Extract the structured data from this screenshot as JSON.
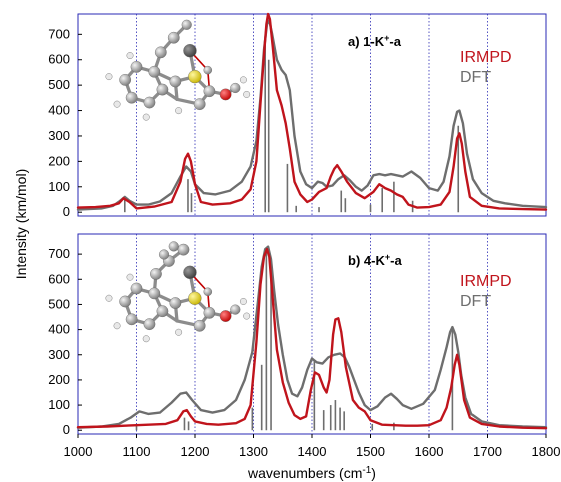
{
  "chart_data": {
    "type": "line",
    "xlabel": "wavenumbers (cm",
    "xlabel_sup": "-1",
    "xlabel_end": ")",
    "ylabel": "Intensity (km/mol)",
    "xlim": [
      1000,
      1800
    ],
    "x_ticks": [
      1000,
      1100,
      1200,
      1300,
      1400,
      1500,
      1600,
      1700,
      1800
    ],
    "y_ticks": [
      0,
      100,
      200,
      300,
      400,
      500,
      600,
      700
    ],
    "ylim": [
      -15,
      780
    ],
    "colors": {
      "IRMPD": "#c0141c",
      "DFT": "#6e6e6e",
      "frame": "#2a2ab4",
      "gridline": "#2a2ab4"
    },
    "panels": [
      {
        "label": "a) 1-K",
        "label_sup": "+",
        "label_end": "-a",
        "legend": [
          "IRMPD",
          "DFT"
        ],
        "vlines": [
          1100,
          1200,
          1300,
          1400,
          1500,
          1600,
          1700
        ],
        "series": [
          {
            "name": "IRMPD",
            "x": [
              1000,
              1030,
              1055,
              1070,
              1078,
              1088,
              1100,
              1130,
              1160,
              1175,
              1183,
              1188,
              1193,
              1200,
              1210,
              1230,
              1260,
              1280,
              1295,
              1305,
              1312,
              1318,
              1322,
              1325,
              1328,
              1333,
              1340,
              1348,
              1355,
              1362,
              1370,
              1380,
              1392,
              1400,
              1412,
              1425,
              1432,
              1438,
              1443,
              1450,
              1460,
              1475,
              1490,
              1505,
              1515,
              1525,
              1535,
              1545,
              1555,
              1565,
              1580,
              1600,
              1620,
              1635,
              1642,
              1648,
              1652,
              1656,
              1662,
              1670,
              1690,
              1720,
              1760,
              1800
            ],
            "y": [
              18,
              20,
              25,
              35,
              55,
              40,
              15,
              22,
              40,
              120,
              210,
              230,
              200,
              110,
              40,
              30,
              35,
              50,
              90,
              200,
              430,
              620,
              740,
              780,
              760,
              650,
              480,
              420,
              350,
              250,
              120,
              70,
              40,
              50,
              80,
              95,
              140,
              170,
              185,
              160,
              120,
              75,
              55,
              80,
              110,
              95,
              85,
              70,
              60,
              30,
              18,
              20,
              30,
              80,
              180,
              290,
              310,
              270,
              160,
              60,
              25,
              15,
              12,
              10
            ]
          },
          {
            "name": "DFT",
            "x": [
              1000,
              1040,
              1060,
              1072,
              1080,
              1088,
              1100,
              1120,
              1140,
              1160,
              1175,
              1185,
              1193,
              1200,
              1215,
              1235,
              1260,
              1280,
              1295,
              1305,
              1312,
              1318,
              1323,
              1327,
              1332,
              1340,
              1348,
              1355,
              1362,
              1370,
              1380,
              1390,
              1400,
              1410,
              1418,
              1425,
              1435,
              1445,
              1455,
              1465,
              1475,
              1485,
              1495,
              1505,
              1515,
              1525,
              1535,
              1545,
              1555,
              1570,
              1585,
              1600,
              1615,
              1625,
              1635,
              1642,
              1648,
              1652,
              1658,
              1665,
              1675,
              1690,
              1710,
              1730,
              1760,
              1800
            ],
            "y": [
              10,
              15,
              25,
              45,
              60,
              45,
              30,
              30,
              42,
              75,
              140,
              180,
              160,
              110,
              75,
              70,
              85,
              120,
              180,
              280,
              450,
              640,
              740,
              755,
              700,
              600,
              560,
              540,
              480,
              300,
              160,
              110,
              95,
              120,
              115,
              100,
              105,
              130,
              145,
              125,
              100,
              85,
              105,
              145,
              150,
              145,
              150,
              145,
              140,
              160,
              135,
              95,
              85,
              120,
              220,
              340,
              395,
              400,
              350,
              230,
              130,
              75,
              45,
              35,
              25,
              20
            ]
          }
        ],
        "sticks": [
          {
            "x": 1080,
            "y": 55
          },
          {
            "x": 1188,
            "y": 130
          },
          {
            "x": 1194,
            "y": 75
          },
          {
            "x": 1320,
            "y": 680
          },
          {
            "x": 1326,
            "y": 600
          },
          {
            "x": 1358,
            "y": 190
          },
          {
            "x": 1373,
            "y": 25
          },
          {
            "x": 1412,
            "y": 20
          },
          {
            "x": 1450,
            "y": 85
          },
          {
            "x": 1457,
            "y": 55
          },
          {
            "x": 1500,
            "y": 30
          },
          {
            "x": 1520,
            "y": 95
          },
          {
            "x": 1540,
            "y": 120
          },
          {
            "x": 1572,
            "y": 45
          },
          {
            "x": 1650,
            "y": 340
          }
        ]
      },
      {
        "label": "b) 4-K",
        "label_sup": "+",
        "label_end": "-a",
        "legend": [
          "IRMPD",
          "DFT"
        ],
        "vlines": [
          1100,
          1200,
          1300,
          1400,
          1500,
          1600,
          1700
        ],
        "series": [
          {
            "name": "IRMPD",
            "x": [
              1000,
              1050,
              1080,
              1100,
              1120,
              1150,
              1170,
              1180,
              1186,
              1193,
              1200,
              1220,
              1240,
              1270,
              1285,
              1295,
              1305,
              1312,
              1318,
              1323,
              1327,
              1332,
              1340,
              1350,
              1360,
              1370,
              1380,
              1390,
              1398,
              1405,
              1412,
              1420,
              1425,
              1430,
              1436,
              1440,
              1445,
              1450,
              1458,
              1470,
              1480,
              1490,
              1500,
              1520,
              1540,
              1560,
              1580,
              1600,
              1620,
              1630,
              1638,
              1644,
              1648,
              1652,
              1660,
              1670,
              1690,
              1720,
              1760,
              1800
            ],
            "y": [
              12,
              15,
              18,
              20,
              22,
              25,
              40,
              75,
              80,
              55,
              35,
              25,
              22,
              28,
              45,
              100,
              350,
              580,
              690,
              720,
              690,
              550,
              320,
              190,
              110,
              60,
              45,
              55,
              160,
              230,
              220,
              170,
              150,
              200,
              380,
              440,
              445,
              390,
              250,
              120,
              90,
              75,
              40,
              22,
              20,
              18,
              18,
              20,
              40,
              90,
              170,
              260,
              300,
              260,
              120,
              50,
              25,
              15,
              10,
              8
            ]
          },
          {
            "name": "DFT",
            "x": [
              1000,
              1040,
              1070,
              1090,
              1105,
              1120,
              1140,
              1160,
              1175,
              1185,
              1195,
              1210,
              1230,
              1250,
              1270,
              1285,
              1298,
              1308,
              1314,
              1320,
              1325,
              1330,
              1335,
              1342,
              1350,
              1358,
              1366,
              1375,
              1383,
              1392,
              1400,
              1408,
              1418,
              1428,
              1438,
              1448,
              1456,
              1464,
              1472,
              1480,
              1490,
              1500,
              1512,
              1525,
              1535,
              1545,
              1555,
              1570,
              1590,
              1610,
              1620,
              1630,
              1636,
              1640,
              1645,
              1650,
              1655,
              1662,
              1672,
              1690,
              1720,
              1760,
              1800
            ],
            "y": [
              10,
              15,
              25,
              50,
              75,
              65,
              70,
              110,
              145,
              150,
              120,
              80,
              70,
              80,
              120,
              200,
              310,
              520,
              650,
              720,
              730,
              680,
              560,
              420,
              300,
              200,
              145,
              135,
              170,
              240,
              285,
              270,
              265,
              290,
              300,
              305,
              290,
              250,
              200,
              150,
              100,
              80,
              95,
              130,
              145,
              125,
              100,
              85,
              105,
              160,
              240,
              330,
              390,
              410,
              380,
              310,
              220,
              130,
              65,
              35,
              20,
              15,
              12
            ]
          }
        ],
        "sticks": [
          {
            "x": 1100,
            "y": 25
          },
          {
            "x": 1182,
            "y": 50
          },
          {
            "x": 1189,
            "y": 35
          },
          {
            "x": 1298,
            "y": 90
          },
          {
            "x": 1314,
            "y": 260
          },
          {
            "x": 1322,
            "y": 720
          },
          {
            "x": 1330,
            "y": 600
          },
          {
            "x": 1404,
            "y": 280
          },
          {
            "x": 1420,
            "y": 80
          },
          {
            "x": 1432,
            "y": 100
          },
          {
            "x": 1440,
            "y": 120
          },
          {
            "x": 1448,
            "y": 90
          },
          {
            "x": 1455,
            "y": 75
          },
          {
            "x": 1503,
            "y": 25
          },
          {
            "x": 1540,
            "y": 30
          },
          {
            "x": 1640,
            "y": 400
          }
        ]
      }
    ]
  }
}
